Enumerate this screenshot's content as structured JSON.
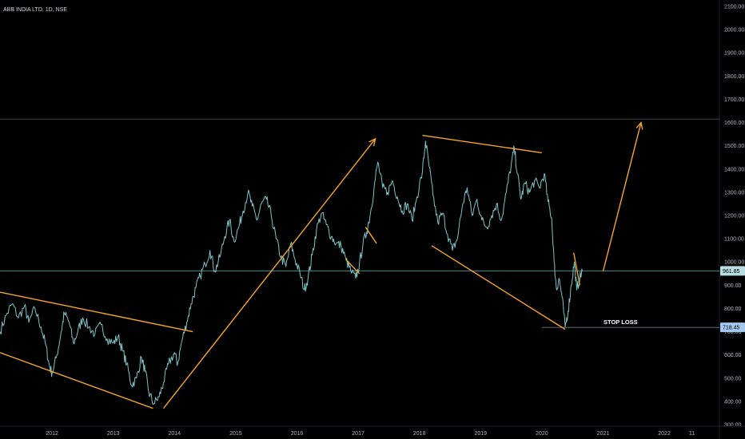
{
  "symbol_title": "ABB INDIA LTD, 1D, NSE",
  "colors": {
    "background": "#000000",
    "price_line": "#7ec4c7",
    "drawing": "#f5a623",
    "level_line": "#55a0a0",
    "axis_text": "#b2b5be",
    "price_badge": "#b7dde0",
    "stop_badge": "#a3c8ee"
  },
  "chart_data": {
    "type": "line",
    "ylim": [
      300,
      2100
    ],
    "xlim": [
      2011.15,
      2022.9
    ],
    "grid": false,
    "price_ticks": [
      300,
      400,
      500,
      600,
      700,
      800,
      900,
      1000,
      1100,
      1200,
      1300,
      1400,
      1500,
      1600,
      1700,
      1800,
      1900,
      2000,
      2100
    ],
    "price_tick_labels": [
      "300.00",
      "400.00",
      "500.00",
      "600.00",
      "700.00",
      "800.00",
      "900.00",
      "1000.00",
      "1100.00",
      "1200.00",
      "1300.00",
      "1400.00",
      "1500.00",
      "1600.00",
      "1700.00",
      "1800.00",
      "1900.00",
      "2000.00",
      "2100.00"
    ],
    "time_ticks": [
      {
        "label": "2012",
        "x": 2012.0
      },
      {
        "label": "2013",
        "x": 2013.0
      },
      {
        "label": "2014",
        "x": 2014.0
      },
      {
        "label": "2015",
        "x": 2015.0
      },
      {
        "label": "2016",
        "x": 2016.0
      },
      {
        "label": "2017",
        "x": 2017.0
      },
      {
        "label": "2018",
        "x": 2018.0
      },
      {
        "label": "2019",
        "x": 2019.0
      },
      {
        "label": "2020",
        "x": 2020.0
      },
      {
        "label": "2021",
        "x": 2021.0
      },
      {
        "label": "2022",
        "x": 2022.0
      },
      {
        "label": "11",
        "x": 2022.45
      }
    ],
    "series": [
      {
        "points": [
          [
            2011.15,
            700
          ],
          [
            2011.25,
            770
          ],
          [
            2011.35,
            820
          ],
          [
            2011.45,
            760
          ],
          [
            2011.55,
            810
          ],
          [
            2011.62,
            740
          ],
          [
            2011.72,
            800
          ],
          [
            2011.82,
            720
          ],
          [
            2011.9,
            640
          ],
          [
            2011.95,
            560
          ],
          [
            2012.0,
            520
          ],
          [
            2012.08,
            600
          ],
          [
            2012.15,
            700
          ],
          [
            2012.2,
            780
          ],
          [
            2012.28,
            740
          ],
          [
            2012.35,
            650
          ],
          [
            2012.42,
            700
          ],
          [
            2012.5,
            760
          ],
          [
            2012.6,
            720
          ],
          [
            2012.7,
            690
          ],
          [
            2012.8,
            730
          ],
          [
            2012.9,
            670
          ],
          [
            2013.0,
            650
          ],
          [
            2013.08,
            680
          ],
          [
            2013.15,
            620
          ],
          [
            2013.22,
            560
          ],
          [
            2013.3,
            470
          ],
          [
            2013.38,
            500
          ],
          [
            2013.46,
            590
          ],
          [
            2013.52,
            530
          ],
          [
            2013.58,
            440
          ],
          [
            2013.66,
            390
          ],
          [
            2013.75,
            420
          ],
          [
            2013.82,
            480
          ],
          [
            2013.9,
            560
          ],
          [
            2014.0,
            610
          ],
          [
            2014.05,
            560
          ],
          [
            2014.12,
            660
          ],
          [
            2014.2,
            740
          ],
          [
            2014.27,
            820
          ],
          [
            2014.35,
            890
          ],
          [
            2014.42,
            940
          ],
          [
            2014.5,
            990
          ],
          [
            2014.58,
            1050
          ],
          [
            2014.66,
            960
          ],
          [
            2014.74,
            1020
          ],
          [
            2014.82,
            1110
          ],
          [
            2014.9,
            1180
          ],
          [
            2014.97,
            1090
          ],
          [
            2015.05,
            1150
          ],
          [
            2015.12,
            1220
          ],
          [
            2015.2,
            1300
          ],
          [
            2015.27,
            1240
          ],
          [
            2015.35,
            1180
          ],
          [
            2015.42,
            1250
          ],
          [
            2015.5,
            1270
          ],
          [
            2015.58,
            1200
          ],
          [
            2015.66,
            1100
          ],
          [
            2015.74,
            1020
          ],
          [
            2015.82,
            980
          ],
          [
            2015.9,
            1080
          ],
          [
            2015.97,
            1010
          ],
          [
            2016.05,
            950
          ],
          [
            2016.12,
            880
          ],
          [
            2016.18,
            930
          ],
          [
            2016.25,
            1030
          ],
          [
            2016.32,
            1140
          ],
          [
            2016.4,
            1210
          ],
          [
            2016.48,
            1160
          ],
          [
            2016.56,
            1110
          ],
          [
            2016.64,
            1080
          ],
          [
            2016.72,
            1070
          ],
          [
            2016.8,
            1010
          ],
          [
            2016.88,
            960
          ],
          [
            2016.96,
            930
          ],
          [
            2017.02,
            990
          ],
          [
            2017.08,
            1080
          ],
          [
            2017.14,
            1130
          ],
          [
            2017.2,
            1210
          ],
          [
            2017.26,
            1320
          ],
          [
            2017.32,
            1430
          ],
          [
            2017.4,
            1320
          ],
          [
            2017.48,
            1300
          ],
          [
            2017.56,
            1350
          ],
          [
            2017.64,
            1280
          ],
          [
            2017.72,
            1220
          ],
          [
            2017.8,
            1250
          ],
          [
            2017.88,
            1180
          ],
          [
            2017.96,
            1280
          ],
          [
            2018.05,
            1390
          ],
          [
            2018.1,
            1520
          ],
          [
            2018.16,
            1410
          ],
          [
            2018.22,
            1290
          ],
          [
            2018.3,
            1170
          ],
          [
            2018.38,
            1210
          ],
          [
            2018.46,
            1120
          ],
          [
            2018.54,
            1050
          ],
          [
            2018.62,
            1100
          ],
          [
            2018.7,
            1240
          ],
          [
            2018.78,
            1320
          ],
          [
            2018.86,
            1200
          ],
          [
            2018.94,
            1270
          ],
          [
            2019.02,
            1180
          ],
          [
            2019.1,
            1150
          ],
          [
            2019.18,
            1200
          ],
          [
            2019.26,
            1250
          ],
          [
            2019.34,
            1180
          ],
          [
            2019.42,
            1300
          ],
          [
            2019.5,
            1420
          ],
          [
            2019.55,
            1490
          ],
          [
            2019.6,
            1380
          ],
          [
            2019.66,
            1270
          ],
          [
            2019.72,
            1340
          ],
          [
            2019.8,
            1300
          ],
          [
            2019.88,
            1350
          ],
          [
            2019.96,
            1320
          ],
          [
            2020.04,
            1380
          ],
          [
            2020.1,
            1260
          ],
          [
            2020.16,
            1190
          ],
          [
            2020.2,
            1000
          ],
          [
            2020.24,
            880
          ],
          [
            2020.28,
            930
          ],
          [
            2020.33,
            850
          ],
          [
            2020.38,
            720
          ],
          [
            2020.43,
            790
          ],
          [
            2020.48,
            900
          ],
          [
            2020.53,
            1000
          ],
          [
            2020.57,
            880
          ],
          [
            2020.62,
            930
          ],
          [
            2020.66,
            960
          ]
        ]
      }
    ],
    "current_price": 961.85,
    "current_price_label": "961.85",
    "stop_loss_price": 718.45,
    "stop_loss_label": "718.45",
    "stop_loss_text": "STOP LOSS",
    "resistance_price": 1615
  },
  "drawings": [
    {
      "from": [
        2011.15,
        870
      ],
      "to": [
        2014.3,
        700
      ]
    },
    {
      "from": [
        2011.15,
        610
      ],
      "to": [
        2013.65,
        370
      ]
    },
    {
      "from": [
        2013.82,
        370
      ],
      "to": [
        2017.28,
        1530
      ]
    },
    {
      "from": [
        2016.8,
        1010
      ],
      "to": [
        2017.02,
        950
      ]
    },
    {
      "from": [
        2017.12,
        1150
      ],
      "to": [
        2017.3,
        1080
      ]
    },
    {
      "from": [
        2018.05,
        1545
      ],
      "to": [
        2020.0,
        1470
      ]
    },
    {
      "from": [
        2018.2,
        1070
      ],
      "to": [
        2020.38,
        710
      ]
    },
    {
      "from": [
        2020.52,
        1040
      ],
      "to": [
        2020.62,
        900
      ]
    },
    {
      "from": [
        2021.0,
        960
      ],
      "to": [
        2021.62,
        1600
      ],
      "arrow": true
    }
  ]
}
